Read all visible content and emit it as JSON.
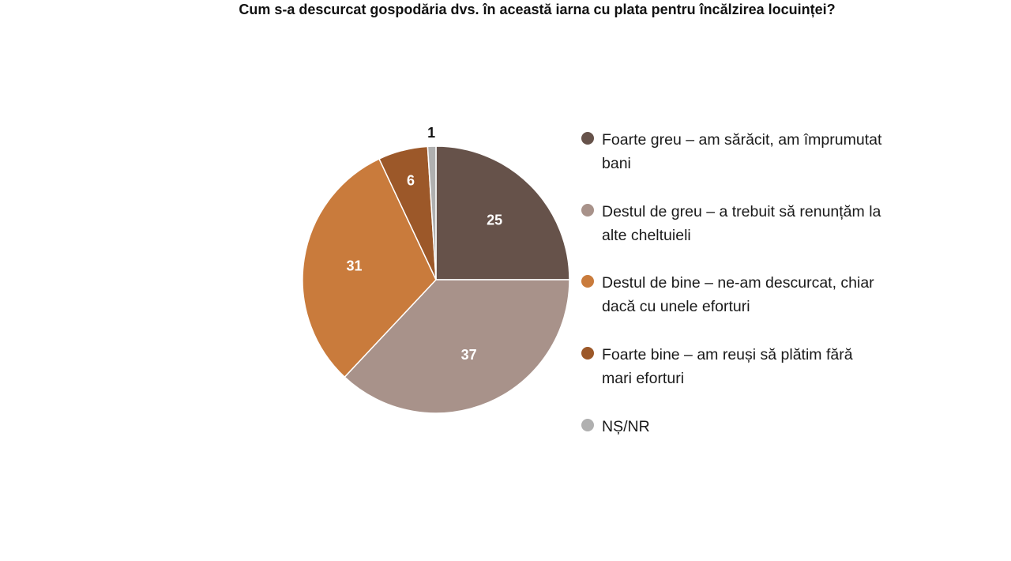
{
  "chart_data": {
    "type": "pie",
    "title": "Cum s-a descurcat gospodăria dvs. în această iarna cu plata pentru încălzirea locuinței?",
    "categories": [
      "Foarte greu – am sărăcit, am împrumutat bani",
      "Destul de greu – a trebuit să renunțăm la alte cheltuieli",
      "Destul de bine – ne-am descurcat, chiar dacă cu unele eforturi",
      "Foarte bine – am reuși să plătim fără mari eforturi",
      "NȘ/NR"
    ],
    "values": [
      25,
      37,
      31,
      6,
      1
    ],
    "colors": [
      "#66524a",
      "#a8928a",
      "#c97b3c",
      "#9c5829",
      "#b0b0b0"
    ],
    "label_colors": [
      "#ffffff",
      "#ffffff",
      "#ffffff",
      "#ffffff",
      "#111111"
    ],
    "legend_position": "right",
    "start_angle": "12 o'clock",
    "direction": "clockwise"
  }
}
